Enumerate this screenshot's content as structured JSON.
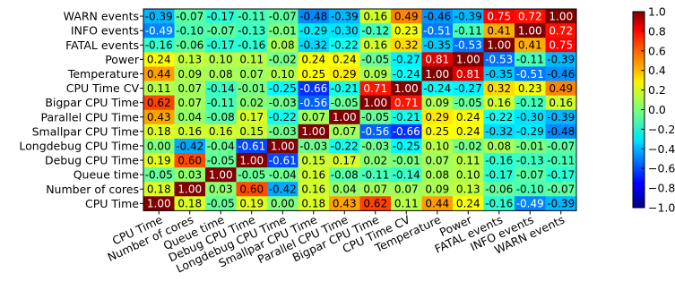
{
  "chart_data": {
    "type": "heatmap",
    "title": "",
    "xlabel": "",
    "ylabel": "",
    "labels": [
      "CPU Time",
      "Number of cores",
      "Queue time",
      "Debug CPU Time",
      "Longdebug CPU Time",
      "Smallpar CPU Time",
      "Parallel CPU Time",
      "Bigpar CPU Time",
      "CPU Time CV",
      "Temperature",
      "Power",
      "FATAL events",
      "INFO events",
      "WARN events"
    ],
    "rows": [
      "WARN events",
      "INFO events",
      "FATAL events",
      "Power",
      "Temperature",
      "CPU Time CV",
      "Bigpar CPU Time",
      "Parallel CPU Time",
      "Smallpar CPU Time",
      "Longdebug CPU Time",
      "Debug CPU Time",
      "Queue time",
      "Number of cores",
      "CPU Time"
    ],
    "columns": [
      "CPU Time",
      "Number of cores",
      "Queue time",
      "Debug CPU Time",
      "Longdebug CPU Time",
      "Smallpar CPU Time",
      "Parallel CPU Time",
      "Bigpar CPU Time",
      "CPU Time CV",
      "Temperature",
      "Power",
      "FATAL events",
      "INFO events",
      "WARN events"
    ],
    "values": [
      [
        -0.39,
        -0.07,
        -0.17,
        -0.11,
        -0.07,
        -0.48,
        -0.39,
        0.16,
        0.49,
        -0.46,
        -0.39,
        0.75,
        0.72,
        1.0
      ],
      [
        -0.49,
        -0.1,
        -0.07,
        -0.13,
        -0.01,
        -0.29,
        -0.3,
        -0.12,
        0.23,
        -0.51,
        -0.11,
        0.41,
        1.0,
        0.72
      ],
      [
        -0.16,
        -0.06,
        -0.17,
        -0.16,
        0.08,
        -0.32,
        -0.22,
        0.16,
        0.32,
        -0.35,
        -0.53,
        1.0,
        0.41,
        0.75
      ],
      [
        0.24,
        0.13,
        0.1,
        0.11,
        -0.02,
        0.24,
        0.24,
        -0.05,
        -0.27,
        0.81,
        1.0,
        -0.53,
        -0.11,
        -0.39
      ],
      [
        0.44,
        0.09,
        0.08,
        0.07,
        0.1,
        0.25,
        0.29,
        0.09,
        -0.24,
        1.0,
        0.81,
        -0.35,
        -0.51,
        -0.46
      ],
      [
        0.11,
        0.07,
        -0.14,
        -0.01,
        -0.25,
        -0.66,
        -0.21,
        0.71,
        1.0,
        -0.24,
        -0.27,
        0.32,
        0.23,
        0.49
      ],
      [
        0.62,
        0.07,
        -0.11,
        0.02,
        -0.03,
        -0.56,
        -0.05,
        1.0,
        0.71,
        0.09,
        -0.05,
        0.16,
        -0.12,
        0.16
      ],
      [
        0.43,
        0.04,
        -0.08,
        0.17,
        -0.22,
        0.07,
        1.0,
        -0.05,
        -0.21,
        0.29,
        0.24,
        -0.22,
        -0.3,
        -0.39
      ],
      [
        0.18,
        0.16,
        0.16,
        0.15,
        -0.03,
        1.0,
        0.07,
        -0.56,
        -0.66,
        0.25,
        0.24,
        -0.32,
        -0.29,
        -0.48
      ],
      [
        0.0,
        -0.42,
        -0.04,
        -0.61,
        1.0,
        -0.03,
        -0.22,
        -0.03,
        -0.25,
        0.1,
        -0.02,
        0.08,
        -0.01,
        -0.07
      ],
      [
        0.19,
        0.6,
        -0.05,
        1.0,
        -0.61,
        0.15,
        0.17,
        0.02,
        -0.01,
        0.07,
        0.11,
        -0.16,
        -0.13,
        -0.11
      ],
      [
        -0.05,
        0.03,
        1.0,
        -0.05,
        -0.04,
        0.16,
        -0.08,
        -0.11,
        -0.14,
        0.08,
        0.1,
        -0.17,
        -0.07,
        -0.17
      ],
      [
        0.18,
        1.0,
        0.03,
        0.6,
        -0.42,
        0.16,
        0.04,
        0.07,
        0.07,
        0.09,
        0.13,
        -0.06,
        -0.1,
        -0.07
      ],
      [
        1.0,
        0.18,
        -0.05,
        0.19,
        0.0,
        0.18,
        0.43,
        0.62,
        0.11,
        0.44,
        0.24,
        -0.16,
        -0.49,
        -0.39
      ]
    ],
    "vmin": -1.0,
    "vmax": 1.0,
    "colormap": "jet",
    "colorbar_ticks": [
      "1.0",
      "0.8",
      "0.6",
      "0.4",
      "0.2",
      "0.0",
      "−0.2",
      "−0.4",
      "−0.6",
      "−0.8",
      "−1.0"
    ],
    "colorbar_tick_values": [
      1.0,
      0.8,
      0.6,
      0.4,
      0.2,
      0.0,
      -0.2,
      -0.4,
      -0.6,
      -0.8,
      -1.0
    ],
    "colorbar_placement": "right",
    "grid": false
  }
}
